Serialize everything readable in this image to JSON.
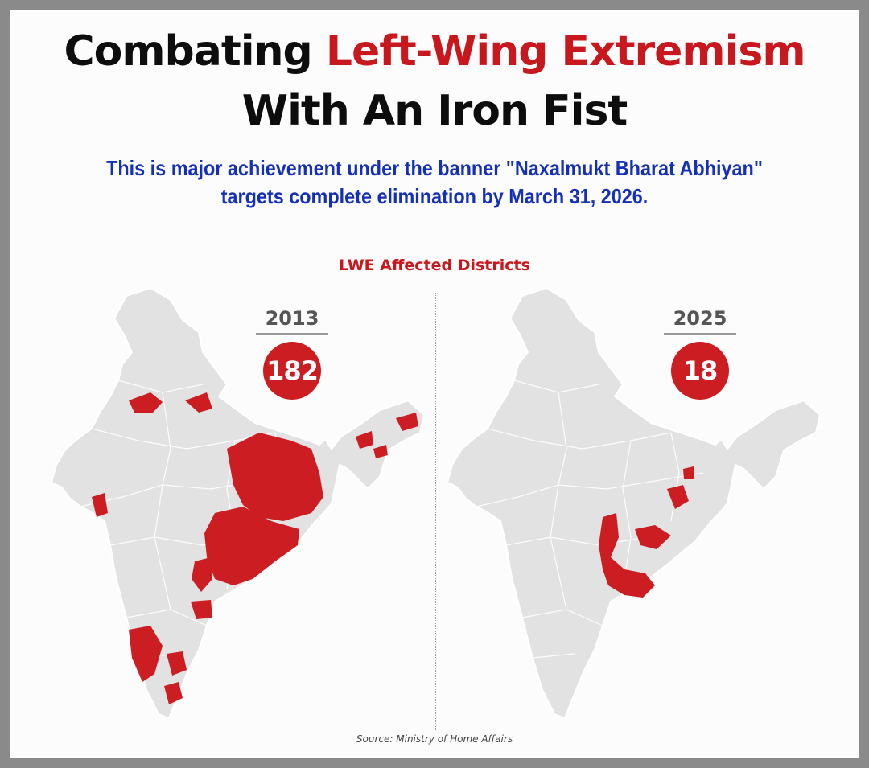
{
  "title": {
    "part1": "Combating ",
    "highlight": "Left-Wing Extremism",
    "line2": "With An Iron Fist"
  },
  "subtitle": {
    "line1": "This is major achievement under the banner \"Naxalmukt Bharat Abhiyan\"",
    "line2": "targets complete elimination by March 31, 2026."
  },
  "section_label": "LWE Affected Districts",
  "maps": [
    {
      "year": "2013",
      "count": "182"
    },
    {
      "year": "2025",
      "count": "18"
    }
  ],
  "source": "Source: Ministry of Home Affairs",
  "colors": {
    "accent_red": "#c8181e",
    "subtitle_blue": "#1530b8",
    "map_fill": "#e2e2e2",
    "affected_fill": "#cc1d22"
  }
}
